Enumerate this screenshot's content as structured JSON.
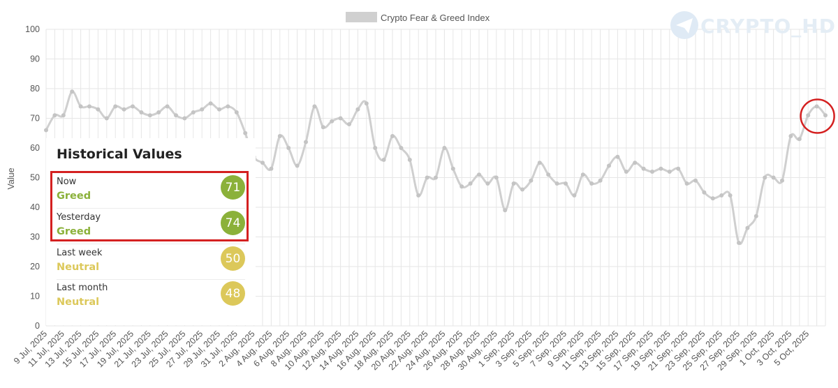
{
  "chart_data": {
    "type": "line",
    "series": [
      {
        "name": "Crypto Fear & Greed Index",
        "values": [
          66,
          71,
          71,
          79,
          74,
          74,
          73,
          70,
          74,
          73,
          74,
          72,
          71,
          72,
          74,
          71,
          70,
          72,
          73,
          75,
          73,
          74,
          72,
          65,
          57,
          55,
          53,
          64,
          60,
          54,
          62,
          74,
          67,
          69,
          70,
          68,
          73,
          75,
          60,
          56,
          64,
          60,
          56,
          44,
          50,
          50,
          60,
          53,
          47,
          48,
          51,
          48,
          50,
          39,
          48,
          46,
          49,
          55,
          51,
          48,
          48,
          44,
          51,
          48,
          49,
          54,
          57,
          52,
          55,
          53,
          52,
          53,
          52,
          53,
          48,
          49,
          45,
          43,
          44,
          44,
          28,
          33,
          37,
          50,
          50,
          49,
          64,
          63,
          71,
          74,
          71
        ]
      }
    ],
    "x_tick_labels": [
      "9 Jul, 2025",
      "11 Jul, 2025",
      "13 Jul, 2025",
      "15 Jul, 2025",
      "17 Jul, 2025",
      "19 Jul, 2025",
      "21 Jul, 2025",
      "23 Jul, 2025",
      "25 Jul, 2025",
      "27 Jul, 2025",
      "29 Jul, 2025",
      "31 Jul, 2025",
      "2 Aug, 2025",
      "4 Aug, 2025",
      "6 Aug, 2025",
      "8 Aug, 2025",
      "10 Aug, 2025",
      "12 Aug, 2025",
      "14 Aug, 2025",
      "16 Aug, 2025",
      "18 Aug, 2025",
      "20 Aug, 2025",
      "22 Aug, 2025",
      "24 Aug, 2025",
      "26 Aug, 2025",
      "28 Aug, 2025",
      "30 Aug, 2025",
      "1 Sep, 2025",
      "3 Sep, 2025",
      "5 Sep, 2025",
      "7 Sep, 2025",
      "9 Sep, 2025",
      "11 Sep, 2025",
      "13 Sep, 2025",
      "15 Sep, 2025",
      "17 Sep, 2025",
      "19 Sep, 2025",
      "21 Sep, 2025",
      "23 Sep, 2025",
      "25 Sep, 2025",
      "27 Sep, 2025",
      "29 Sep, 2025",
      "1 Oct, 2025",
      "3 Oct, 2025",
      "5 Oct, 2025"
    ],
    "y_ticks": [
      0,
      10,
      20,
      30,
      40,
      50,
      60,
      70,
      80,
      90,
      100
    ],
    "ylabel": "Value",
    "ylim": [
      0,
      100
    ],
    "grid": true,
    "legend": "top-center",
    "line_color": "#cfcfcf",
    "highlight_color": "#d42020"
  },
  "watermark": "CRYPTO_HD",
  "historical": {
    "title": "Historical Values",
    "rows": [
      {
        "label": "Now",
        "classification": "Greed",
        "value": "71",
        "color": "#8bb13a"
      },
      {
        "label": "Yesterday",
        "classification": "Greed",
        "value": "74",
        "color": "#8bb13a"
      },
      {
        "label": "Last week",
        "classification": "Neutral",
        "value": "50",
        "color": "#dcc85a"
      },
      {
        "label": "Last month",
        "classification": "Neutral",
        "value": "48",
        "color": "#dcc85a"
      }
    ]
  }
}
